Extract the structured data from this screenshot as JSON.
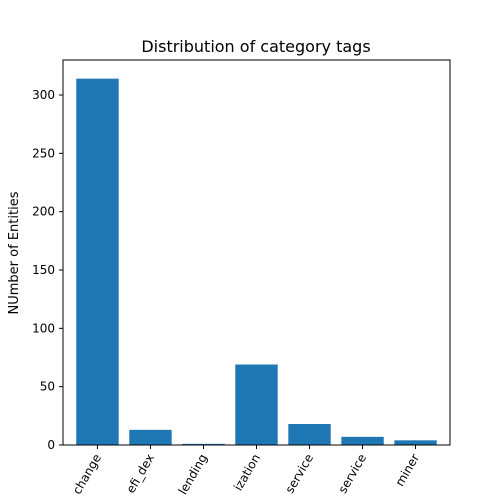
{
  "chart_data": {
    "type": "bar",
    "title": "Distribution of category tags",
    "xlabel": "",
    "ylabel": "NUmber of Entities",
    "categories": [
      "exchange",
      "defi_dex",
      "lending",
      "organization",
      "service",
      "service",
      "miner"
    ],
    "category_labels_visible": [
      "change",
      "efi_dex",
      "lending",
      "ization",
      "service",
      "service",
      "miner"
    ],
    "values": [
      314,
      13,
      1,
      69,
      18,
      7,
      4
    ],
    "ylim": [
      0,
      330
    ],
    "yticks": [
      0,
      50,
      100,
      150,
      200,
      250,
      300
    ],
    "grid": false,
    "legend": "none",
    "bar_color": "#1f77b4"
  }
}
